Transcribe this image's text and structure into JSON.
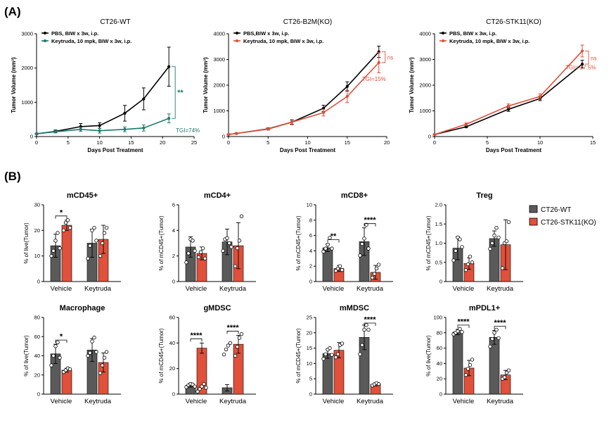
{
  "colors": {
    "wt": "#000000",
    "keytruda_teal": "#1a7a6b",
    "keytruda_red": "#e0503a",
    "bar_wt": "#5a5a5a",
    "bar_ko": "#e0503a"
  },
  "panel_a_label": "(A)",
  "panel_b_label": "(B)",
  "legend_b": {
    "wt": "CT26-WT",
    "ko": "CT26-STK11(KO)"
  },
  "chart_data": [
    {
      "type": "line",
      "title": "CT26-WT",
      "xlabel": "Days Post Treatment",
      "ylabel": "Tumor Volume (mm³)",
      "xlim": [
        0,
        25
      ],
      "ylim": [
        0,
        3000
      ],
      "xticks": [
        0,
        5,
        10,
        15,
        20,
        25
      ],
      "yticks": [
        0,
        1000,
        2000,
        3000
      ],
      "series": [
        {
          "name": "PBS, BIW x 3w, i.p.",
          "color": "#000000",
          "x": [
            0,
            3,
            7,
            10,
            14,
            17,
            21
          ],
          "y": [
            80,
            150,
            290,
            320,
            680,
            1100,
            2040
          ],
          "err": [
            20,
            40,
            90,
            80,
            230,
            320,
            570
          ]
        },
        {
          "name": "Keytruda, 10 mpk, BIW x 3w, i.p.",
          "color": "#1a7a6b",
          "x": [
            0,
            3,
            7,
            10,
            14,
            17,
            21
          ],
          "y": [
            80,
            140,
            210,
            170,
            210,
            250,
            530
          ],
          "err": [
            20,
            30,
            60,
            70,
            70,
            90,
            130
          ]
        }
      ],
      "annotations": [
        {
          "kind": "bracket",
          "label": "**"
        },
        {
          "kind": "text",
          "label": "TGI=74%"
        }
      ]
    },
    {
      "type": "line",
      "title": "CT26-B2M(KO)",
      "xlabel": "Days Post Treatment",
      "ylabel": "Tumor Volume (mm³)",
      "xlim": [
        0,
        20
      ],
      "ylim": [
        0,
        4000
      ],
      "xticks": [
        0,
        5,
        10,
        15,
        20
      ],
      "yticks": [
        0,
        1000,
        2000,
        3000,
        4000
      ],
      "series": [
        {
          "name": "PBS,BIW x 3w, i.p.",
          "color": "#000000",
          "x": [
            0,
            1,
            5,
            8,
            12,
            15,
            19
          ],
          "y": [
            80,
            120,
            300,
            560,
            1100,
            1950,
            3300
          ],
          "err": [
            20,
            20,
            40,
            80,
            120,
            180,
            220
          ]
        },
        {
          "name": "Keytruda, 10 mpk, BIW x 3w, i.p.",
          "color": "#e0503a",
          "x": [
            0,
            1,
            5,
            8,
            12,
            15,
            19
          ],
          "y": [
            80,
            120,
            290,
            560,
            930,
            1560,
            2880
          ],
          "err": [
            20,
            20,
            40,
            100,
            130,
            240,
            400
          ]
        }
      ],
      "annotations": [
        {
          "kind": "bracket",
          "label": "ns"
        },
        {
          "kind": "text",
          "label": "TGI=15%"
        }
      ]
    },
    {
      "type": "line",
      "title": "CT26-STK11(KO)",
      "xlabel": "Days Post Treatment",
      "ylabel": "Tumor Volume (mm³)",
      "xlim": [
        0,
        15
      ],
      "ylim": [
        0,
        4000
      ],
      "xticks": [
        0,
        5,
        10,
        15
      ],
      "yticks": [
        0,
        1000,
        2000,
        3000,
        4000
      ],
      "series": [
        {
          "name": "PBS, BIW x 3w, i.p.",
          "color": "#000000",
          "x": [
            0,
            3,
            7,
            10,
            14
          ],
          "y": [
            80,
            380,
            1060,
            1480,
            2820
          ],
          "err": [
            20,
            30,
            80,
            80,
            150
          ]
        },
        {
          "name": "Keytruda, 10 mpk, BIW x 3w, i.p.",
          "color": "#e0503a",
          "x": [
            0,
            3,
            7,
            10,
            14
          ],
          "y": [
            80,
            480,
            1190,
            1560,
            3330
          ],
          "err": [
            20,
            50,
            80,
            100,
            230
          ]
        }
      ],
      "annotations": [
        {
          "kind": "bracket",
          "label": "ns"
        },
        {
          "kind": "text",
          "label": "TGI=-17.5%"
        }
      ]
    },
    {
      "type": "bar",
      "title": "mCD45+",
      "ylabel": "% of live(Tumor)",
      "ylim": [
        0,
        30
      ],
      "yticks": [
        0,
        10,
        20,
        30
      ],
      "categories": [
        "Vehicle",
        "Keytruda"
      ],
      "series": [
        {
          "name": "CT26-WT",
          "values": [
            14,
            15
          ],
          "err": [
            4.5,
            5.5
          ]
        },
        {
          "name": "CT26-STK11(KO)",
          "values": [
            22,
            16.5
          ],
          "err": [
            2,
            5.5
          ]
        }
      ],
      "points": [
        [
          [
            10,
            12,
            16,
            19,
            13
          ],
          [
            20,
            23,
            24,
            21
          ]
        ],
        [
          [
            9,
            14,
            20,
            21,
            16
          ],
          [
            10,
            15,
            19,
            21
          ]
        ]
      ],
      "significance": [
        {
          "group": 0,
          "label": "*"
        }
      ]
    },
    {
      "type": "bar",
      "title": "mCD4+",
      "ylabel": "% of mCD45+(Tumor)",
      "ylim": [
        0,
        6
      ],
      "yticks": [
        0,
        2,
        4,
        6
      ],
      "categories": [
        "Vehicle",
        "Keytruda"
      ],
      "series": [
        {
          "name": "CT26-WT",
          "values": [
            2.7,
            3.1
          ],
          "err": [
            0.8,
            1
          ]
        },
        {
          "name": "CT26-STK11(KO)",
          "values": [
            2.2,
            2.8
          ],
          "err": [
            0.5,
            1.8
          ]
        }
      ],
      "points": [
        [
          [
            1.5,
            2.2,
            3.3,
            3.2,
            2.4
          ],
          [
            1.9,
            2.3,
            2.6,
            1.8
          ]
        ],
        [
          [
            2.4,
            3.3,
            3.4,
            3.0,
            2.7
          ],
          [
            1.2,
            2.6,
            3.2,
            5.1
          ]
        ]
      ],
      "significance": []
    },
    {
      "type": "bar",
      "title": "mCD8+",
      "ylabel": "% of mCD45+(Tumor)",
      "ylim": [
        0,
        10
      ],
      "yticks": [
        0,
        2,
        4,
        6,
        8,
        10
      ],
      "categories": [
        "Vehicle",
        "Keytruda"
      ],
      "series": [
        {
          "name": "CT26-WT",
          "values": [
            4.4,
            5.2
          ],
          "err": [
            0.5,
            1.8
          ]
        },
        {
          "name": "CT26-STK11(KO)",
          "values": [
            1.7,
            1.2
          ],
          "err": [
            0.4,
            0.9
          ]
        }
      ],
      "points": [
        [
          [
            3.9,
            4.3,
            4.8,
            5.7,
            4.3
          ],
          [
            1.4,
            1.7,
            2.0,
            1.5
          ]
        ],
        [
          [
            3.4,
            4.9,
            5.6,
            7.4,
            4.3
          ],
          [
            0.5,
            1.0,
            1.7,
            2.2
          ]
        ]
      ],
      "significance": [
        {
          "group": 0,
          "label": "**"
        },
        {
          "group": 1,
          "label": "****"
        }
      ]
    },
    {
      "type": "bar",
      "title": "Treg",
      "ylabel": "% of mCD45+(Tumor)",
      "ylim": [
        0,
        2
      ],
      "yticks": [
        0,
        0.5,
        1.0,
        1.5,
        2.0
      ],
      "categories": [
        "Vehicle",
        "Keytruda"
      ],
      "series": [
        {
          "name": "CT26-WT",
          "values": [
            0.87,
            1.12
          ],
          "err": [
            0.3,
            0.2
          ]
        },
        {
          "name": "CT26-STK11(KO)",
          "values": [
            0.47,
            0.96
          ],
          "err": [
            0.15,
            0.65
          ]
        }
      ],
      "points": [
        [
          [
            0.55,
            0.8,
            1.15,
            1.1,
            0.9
          ],
          [
            0.3,
            0.45,
            0.65,
            0.5
          ]
        ],
        [
          [
            0.85,
            1.0,
            1.2,
            1.4,
            1.15
          ],
          [
            0.35,
            1.0,
            1.05,
            1.55
          ]
        ]
      ],
      "significance": []
    },
    {
      "type": "bar",
      "title": "Macrophage",
      "ylabel": "% of live(Tumor)",
      "ylim": [
        0,
        80
      ],
      "yticks": [
        0,
        20,
        40,
        60,
        80
      ],
      "categories": [
        "Vehicle",
        "Keytruda"
      ],
      "series": [
        {
          "name": "CT26-WT",
          "values": [
            42,
            46
          ],
          "err": [
            10,
            12
          ]
        },
        {
          "name": "CT26-STK11(KO)",
          "values": [
            25,
            33
          ],
          "err": [
            2,
            10
          ]
        }
      ],
      "points": [
        [
          [
            30,
            40,
            50,
            54,
            38
          ],
          [
            23,
            25,
            27,
            26
          ]
        ],
        [
          [
            40,
            43,
            55,
            59,
            44
          ],
          [
            22,
            30,
            38,
            44
          ]
        ]
      ],
      "significance": [
        {
          "group": 0,
          "label": "*"
        }
      ]
    },
    {
      "type": "bar",
      "title": "gMDSC",
      "ylabel": "% of mCD45+(Tumor)",
      "ylim": [
        0,
        60
      ],
      "yticks": [
        0,
        20,
        40,
        60
      ],
      "categories": [
        "Vehicle",
        "Keytruda"
      ],
      "series": [
        {
          "name": "CT26-WT",
          "values": [
            7,
            5
          ],
          "err": [
            1.5,
            2.5
          ]
        },
        {
          "name": "CT26-STK11(KO)",
          "values": [
            36,
            39
          ],
          "err": [
            4,
            7
          ]
        }
      ],
      "points": [
        [
          [
            5.5,
            7,
            8,
            7.5,
            6
          ],
          [
            2,
            4,
            6,
            8,
            5
          ]
        ],
        [
          [
            31,
            35,
            38,
            40
          ],
          [
            30,
            37,
            44,
            47
          ]
        ]
      ],
      "significance": [
        {
          "group": 0,
          "label": "****"
        },
        {
          "group": 1,
          "label": "****"
        }
      ]
    },
    {
      "type": "bar",
      "title": "mMDSC",
      "ylabel": "% of mCD45+(Tumor)",
      "ylim": [
        0,
        25
      ],
      "yticks": [
        0,
        5,
        10,
        15,
        20,
        25
      ],
      "categories": [
        "Vehicle",
        "Keytruda"
      ],
      "series": [
        {
          "name": "CT26-WT",
          "values": [
            13.2,
            18.5
          ],
          "err": [
            1.5,
            4
          ]
        },
        {
          "name": "CT26-STK11(KO)",
          "values": [
            14.3,
            3.2
          ],
          "err": [
            2.5,
            0.5
          ]
        }
      ],
      "points": [
        [
          [
            11.5,
            13,
            14.5,
            15,
            12.8
          ],
          [
            12,
            13,
            16,
            16.5
          ]
        ],
        [
          [
            13,
            16,
            21,
            22.5,
            21
          ],
          [
            2.8,
            3.2,
            3.6,
            3.3
          ]
        ]
      ],
      "significance": [
        {
          "group": 1,
          "label": "****"
        }
      ]
    },
    {
      "type": "bar",
      "title": "mPDL1+",
      "ylabel": "% of live(Tumor)",
      "ylim": [
        0,
        100
      ],
      "yticks": [
        0,
        20,
        40,
        60,
        80,
        100
      ],
      "categories": [
        "Vehicle",
        "Keytruda"
      ],
      "series": [
        {
          "name": "CT26-WT",
          "values": [
            81,
            74
          ],
          "err": [
            3.5,
            9
          ]
        },
        {
          "name": "CT26-STK11(KO)",
          "values": [
            34,
            25
          ],
          "err": [
            10,
            6
          ]
        }
      ],
      "points": [
        [
          [
            78,
            80,
            82,
            85,
            81
          ],
          [
            25,
            33,
            38,
            45
          ]
        ],
        [
          [
            62,
            72,
            80,
            84,
            73
          ],
          [
            20,
            22,
            28,
            31
          ]
        ]
      ],
      "significance": [
        {
          "group": 0,
          "label": "****"
        },
        {
          "group": 1,
          "label": "****"
        }
      ]
    }
  ]
}
